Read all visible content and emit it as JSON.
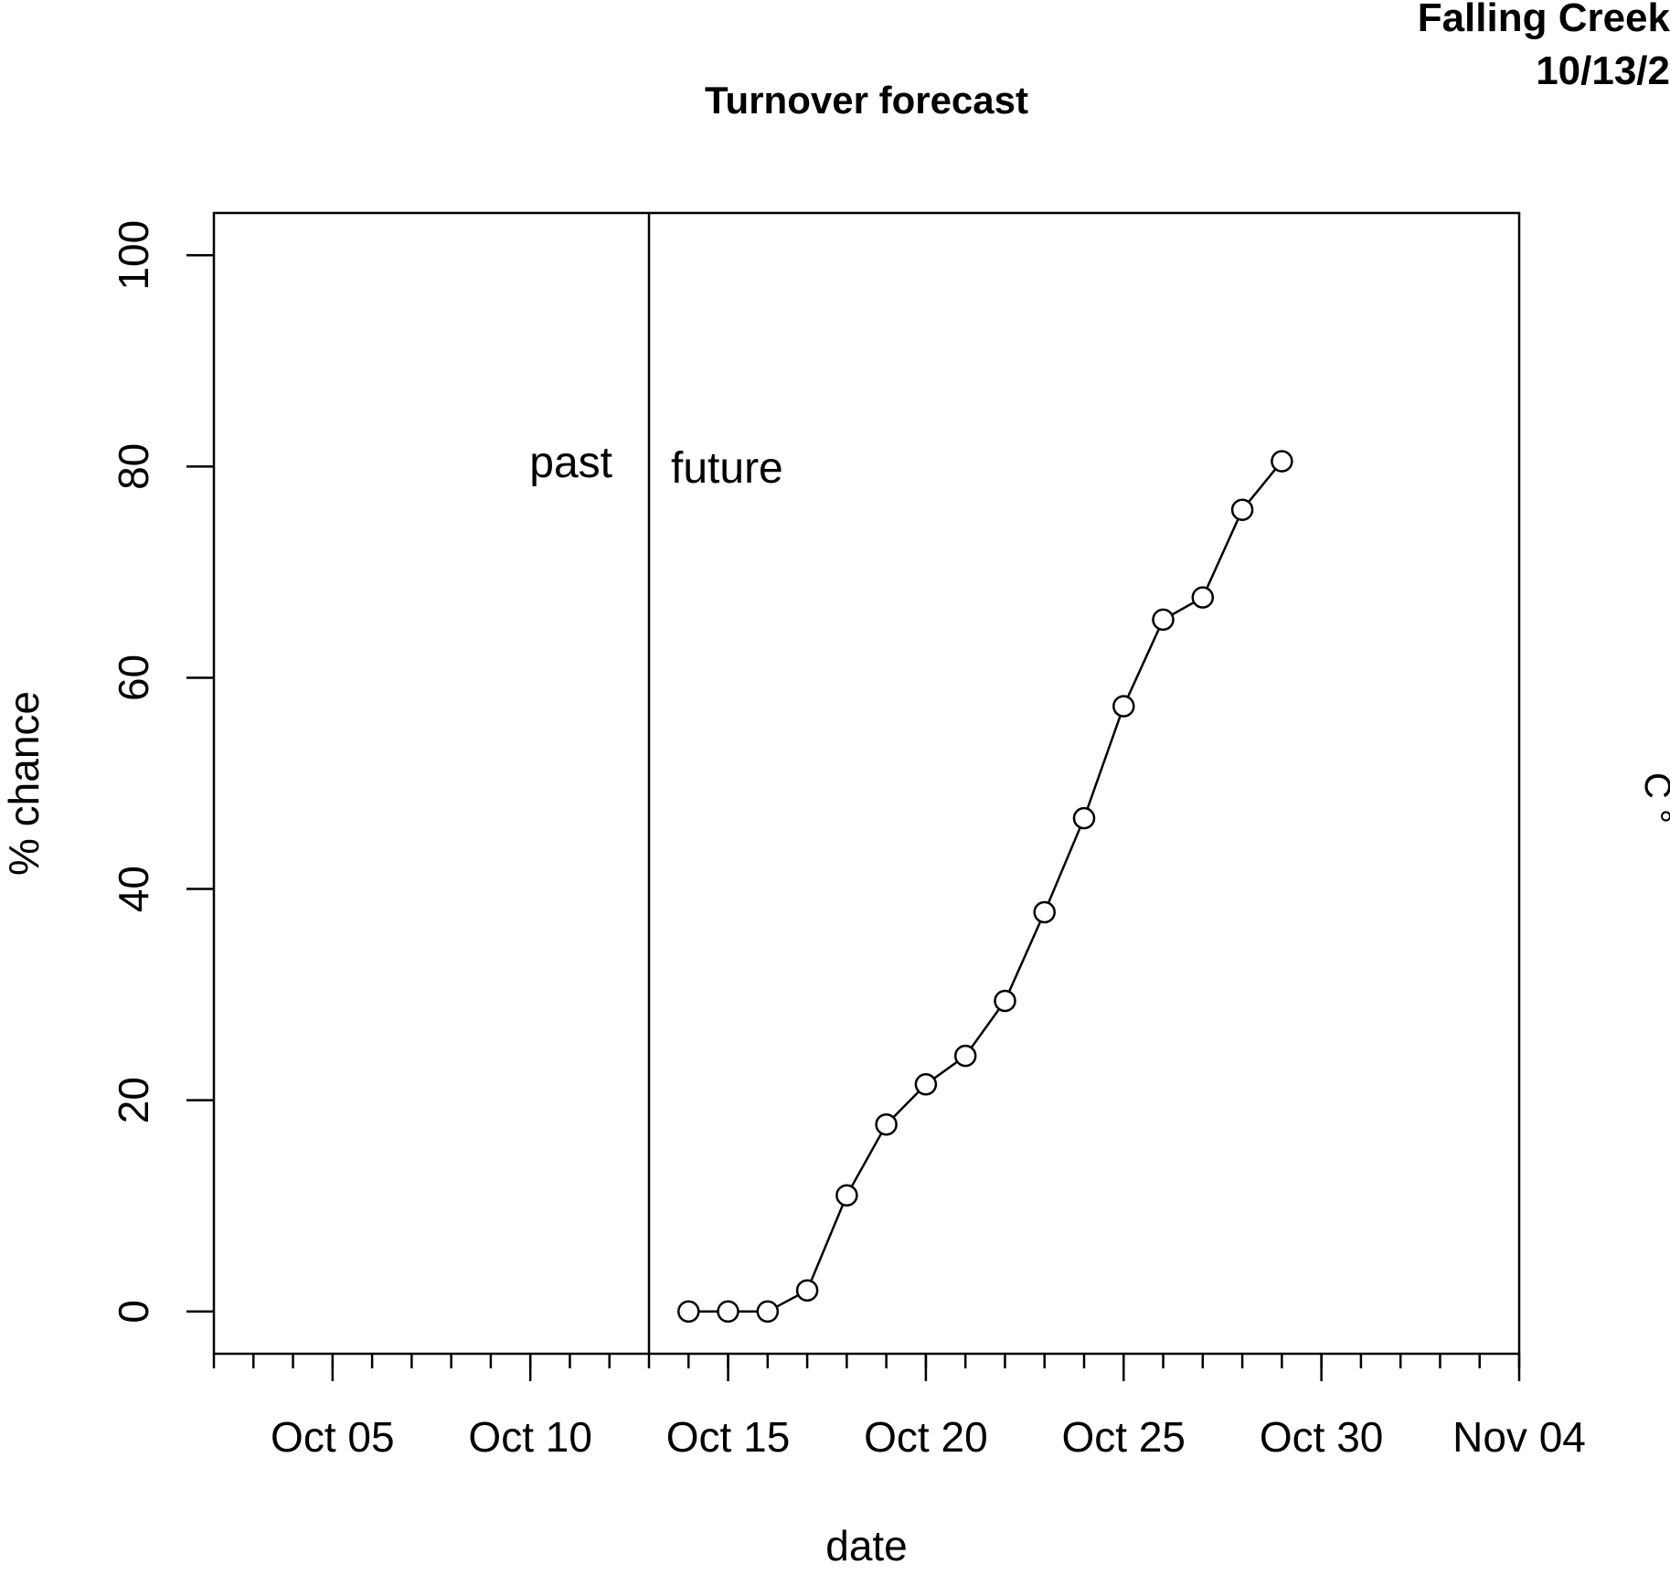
{
  "header": {
    "site": "Falling Creek",
    "date": "10/13/2"
  },
  "right_margin_glyphs": "C °",
  "chart_data": {
    "type": "line",
    "title": "Turnover forecast",
    "xlabel": "date",
    "ylabel": "% chance",
    "x_tick_labels": [
      "Oct 05",
      "Oct 10",
      "Oct 15",
      "Oct 20",
      "Oct 25",
      "Oct 30",
      "Nov 04"
    ],
    "x_tick_dates": [
      "2023-10-05",
      "2023-10-10",
      "2023-10-15",
      "2023-10-20",
      "2023-10-25",
      "2023-10-30",
      "2023-11-04"
    ],
    "xlim": [
      "2023-10-02",
      "2023-11-04"
    ],
    "y_ticks": [
      0,
      20,
      40,
      60,
      80,
      100
    ],
    "ylim": [
      -4,
      104
    ],
    "marker": "open-circle",
    "line_color": "#000000",
    "divider_date": "2023-10-13",
    "annotations": {
      "past": "past",
      "future": "future"
    },
    "series": [
      {
        "x": [
          "2023-10-14",
          "2023-10-15",
          "2023-10-16",
          "2023-10-17",
          "2023-10-18",
          "2023-10-19",
          "2023-10-20",
          "2023-10-21",
          "2023-10-22",
          "2023-10-23",
          "2023-10-24",
          "2023-10-25",
          "2023-10-26",
          "2023-10-27",
          "2023-10-28",
          "2023-10-29"
        ],
        "values": [
          0,
          0,
          0,
          2,
          11,
          17.7,
          21.5,
          24.2,
          29.4,
          37.8,
          46.7,
          57.3,
          65.5,
          67.6,
          75.9,
          80.5
        ]
      }
    ],
    "grid": false,
    "legend": "none"
  }
}
